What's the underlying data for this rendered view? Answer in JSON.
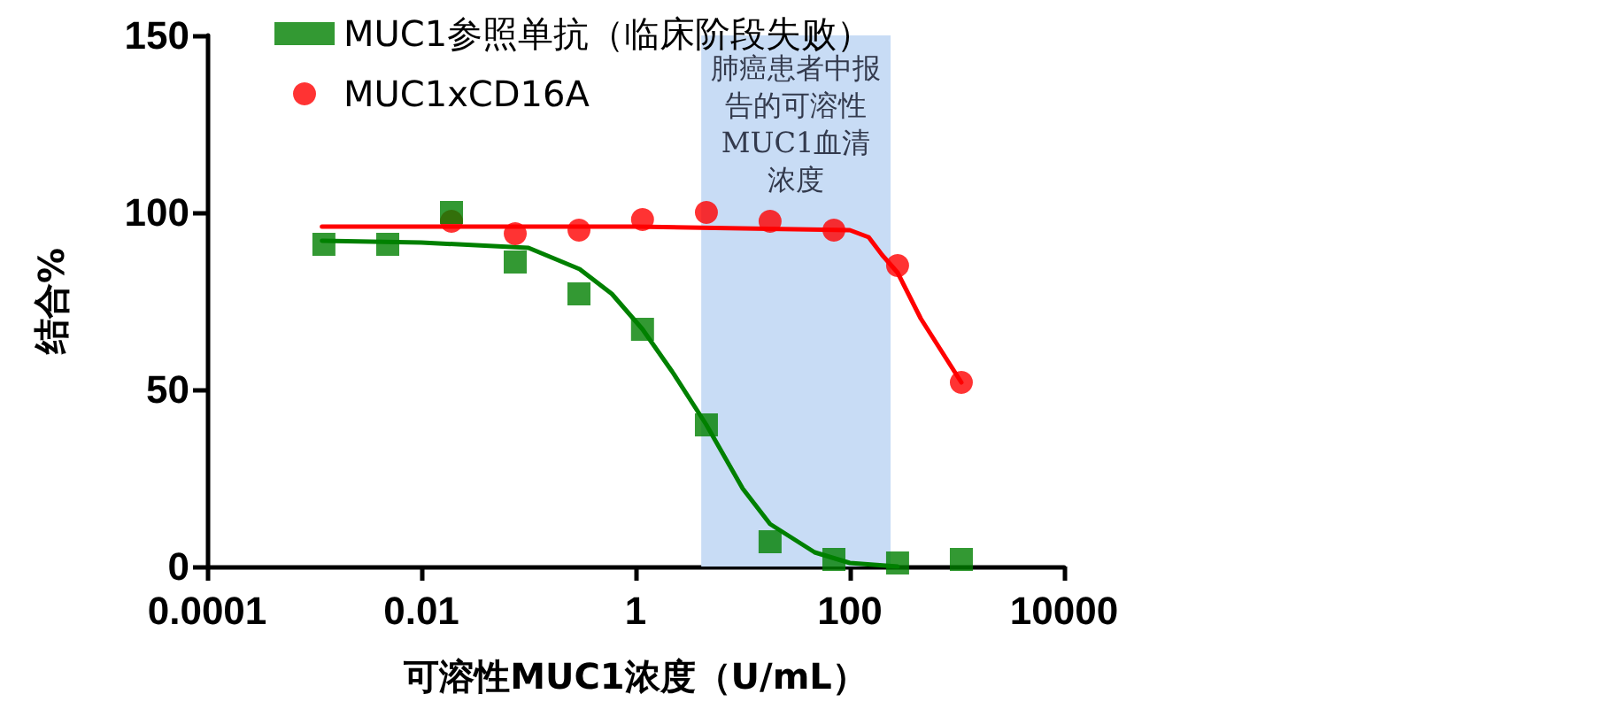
{
  "chart_data": {
    "type": "scatter",
    "xlabel": "可溶性MUC1浓度（U/mL）",
    "ylabel": "结合%",
    "log": "x",
    "xlim": [
      0.0001,
      10000
    ],
    "xticks": [
      0.0001,
      0.01,
      1,
      100,
      10000
    ],
    "ylim": [
      0,
      150
    ],
    "yticks": [
      0,
      50,
      100,
      150
    ],
    "grid": false,
    "legend": "top left",
    "x": [
      0.00123,
      0.00485,
      0.0191,
      0.0752,
      0.296,
      1.16,
      4.58,
      18.0,
      71.0,
      279,
      1099
    ],
    "series": [
      {
        "name": "MUC1参照单抗（临床阶段失败）",
        "color": "#008000",
        "marker": "square",
        "values": [
          91,
          91,
          100,
          86,
          77,
          67,
          40,
          7,
          2,
          1,
          2
        ]
      },
      {
        "name": "MUC1xCD16A",
        "color": "#ff0000",
        "marker": "circle",
        "values": [
          null,
          null,
          97.5,
          94,
          95,
          98,
          100,
          97.5,
          95,
          85,
          52
        ]
      },
      {
        "type": "line",
        "color": "#008000",
        "marker": "none",
        "line_style": "solid",
        "x": [
          0.00118,
          0.01,
          0.1,
          0.3,
          0.6,
          1.16,
          2.2,
          4.58,
          10,
          18,
          47,
          100,
          279
        ],
        "values": [
          92,
          91.5,
          90,
          84,
          77,
          67,
          55,
          40,
          22,
          12,
          4,
          1,
          0
        ]
      },
      {
        "type": "line",
        "color": "#ff0000",
        "marker": "none",
        "line_style": "solid",
        "x": [
          0.00118,
          0.01,
          1,
          100,
          150,
          200,
          279,
          460,
          1099
        ],
        "values": [
          96,
          96,
          96,
          95,
          93,
          88,
          83,
          70,
          52
        ]
      }
    ],
    "bands": [
      {
        "axis": "x",
        "from": 4.1,
        "to": 240,
        "color": "#c8dcf5",
        "label": "肺癌患者中报告的可溶性MUC1血清浓度"
      }
    ]
  }
}
